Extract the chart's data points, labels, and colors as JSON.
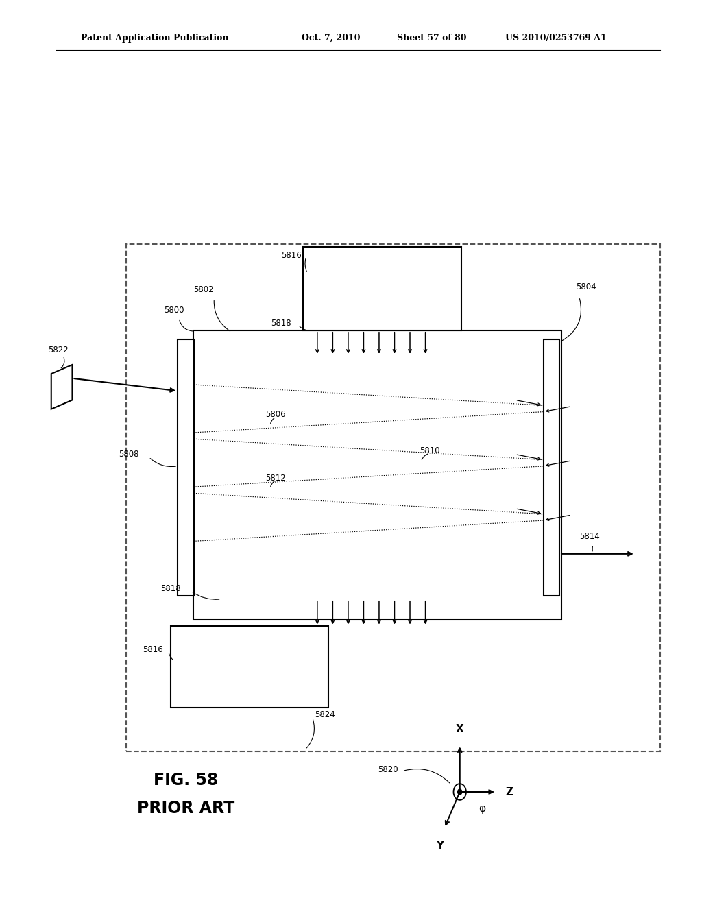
{
  "bg_color": "#ffffff",
  "header_text": "Patent Application Publication",
  "header_date": "Oct. 7, 2010",
  "header_sheet": "Sheet 57 of 80",
  "header_patent": "US 2010/0253769 A1",
  "fig_label": "FIG. 58",
  "prior_art_label": "PRIOR ART"
}
